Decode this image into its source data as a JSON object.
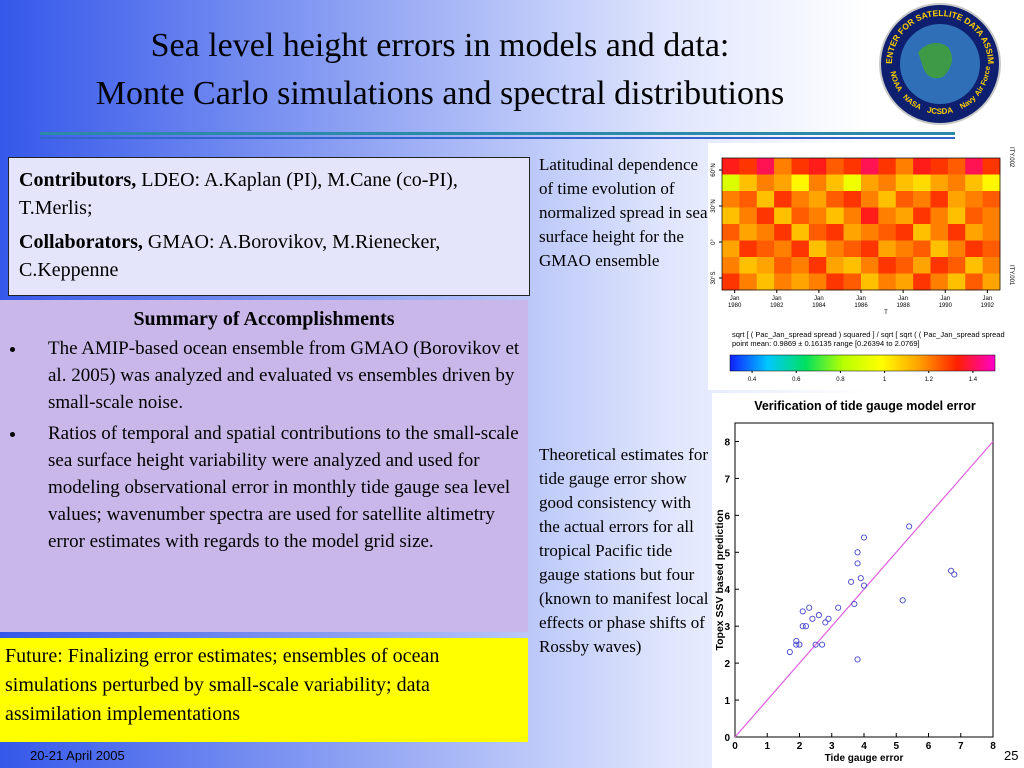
{
  "title": [
    "Sea level height errors in models and data:",
    "Monte Carlo simulations and spectral distributions"
  ],
  "logo": {
    "ring": "JOINT CENTER FOR SATELLITE DATA ASSIMILATION",
    "bottom": [
      "NOAA",
      "NASA",
      "JCSDA",
      "Navy",
      "Air Force"
    ]
  },
  "contributors": {
    "label": "Contributors,",
    "text": "LDEO: A.Kaplan (PI), M.Cane (co-PI), T.Merlis;"
  },
  "collaborators": {
    "label": "Collaborators,",
    "text": "GMAO: A.Borovikov, M.Rienecker, C.Keppenne"
  },
  "summary": {
    "title": "Summary of Accomplishments",
    "items": [
      "The AMIP-based ocean ensemble from GMAO (Borovikov et al. 2005) was analyzed and evaluated vs ensembles driven by small-scale noise.",
      "Ratios of temporal and spatial contributions to the small-scale sea surface height variability were analyzed and used  for modeling observational error in monthly tide gauge sea level values; wavenumber spectra are used for satellite altimetry error estimates with regards to the model grid size."
    ]
  },
  "future": "Future: Finalizing error estimates; ensembles of ocean simulations perturbed by small-scale variability; data assimilation implementations",
  "caption1": "Latitudinal dependence of time evolution of normalized spread in sea surface height for the GMAO ensemble",
  "caption2": "Theoretical estimates for tide gauge error show good consistency with the actual errors for all tropical Pacific tide gauge stations but four (known to manifest local effects or phase shifts of Rossby waves)",
  "footer": {
    "date": "20-21 April 2005",
    "page": "25"
  },
  "heatmap": {
    "type": "heatmap",
    "side_labels": [
      "ITY.002",
      "ITY.001"
    ],
    "xlim": [
      1979.4,
      1992.6
    ],
    "xticks": [
      1980,
      1982,
      1984,
      1986,
      1988,
      1990,
      1992
    ],
    "xtick_month": "Jan",
    "x_marker": "T",
    "ylim": [
      -40,
      70
    ],
    "yticks": [
      {
        "value": 60,
        "label": "60°N"
      },
      {
        "value": 30,
        "label": "30°N"
      },
      {
        "value": 0,
        "label": "0°"
      },
      {
        "value": -30,
        "label": "30°S"
      }
    ],
    "formula": "sqrt [ ( Pac_Jan_spread spread ) squared ]   /   sqrt [   sqrt ( ( Pac_Jan_spread spread",
    "stats": "point mean: 0.9869 ± 0.16135 range [0.26394 to 2.0769]",
    "values": [
      [
        1.35,
        1.3,
        1.4,
        1.2,
        1.3,
        1.35,
        1.25,
        1.3,
        1.4,
        1.3,
        1.2,
        1.35,
        1.3,
        1.25,
        1.4,
        1.3
      ],
      [
        0.9,
        1.1,
        1.2,
        1.15,
        1.0,
        1.2,
        1.1,
        0.95,
        1.15,
        1.2,
        1.1,
        1.05,
        1.15,
        1.2,
        1.1,
        1.0
      ],
      [
        1.2,
        1.25,
        1.1,
        1.3,
        1.2,
        1.15,
        1.25,
        1.3,
        1.2,
        1.1,
        1.25,
        1.2,
        1.3,
        1.15,
        1.2,
        1.25
      ],
      [
        1.1,
        1.2,
        1.3,
        1.1,
        1.25,
        1.2,
        1.1,
        1.2,
        1.35,
        1.2,
        1.15,
        1.3,
        1.2,
        1.1,
        1.25,
        1.2
      ],
      [
        1.25,
        1.15,
        1.2,
        1.3,
        1.1,
        1.25,
        1.3,
        1.15,
        1.2,
        1.25,
        1.3,
        1.1,
        1.2,
        1.3,
        1.15,
        1.2
      ],
      [
        1.15,
        1.3,
        1.25,
        1.2,
        1.3,
        1.1,
        1.2,
        1.25,
        1.3,
        1.15,
        1.2,
        1.25,
        1.1,
        1.2,
        1.3,
        1.25
      ],
      [
        1.2,
        1.1,
        1.15,
        1.25,
        1.2,
        1.3,
        1.15,
        1.1,
        1.2,
        1.3,
        1.25,
        1.15,
        1.3,
        1.25,
        1.1,
        1.2
      ],
      [
        1.3,
        1.2,
        1.1,
        1.2,
        1.15,
        1.2,
        1.3,
        1.25,
        1.1,
        1.2,
        1.15,
        1.3,
        1.2,
        1.1,
        1.25,
        1.15
      ]
    ],
    "colorbar": {
      "lim": [
        0.3,
        1.5
      ],
      "ticks": [
        0.4,
        0.6,
        0.8,
        1,
        1.2,
        1.4
      ],
      "colors": [
        "#1020ff",
        "#00c8ff",
        "#00e060",
        "#b8ff00",
        "#ffff00",
        "#ffa000",
        "#ff2000",
        "#ff00c8"
      ]
    }
  },
  "scatter": {
    "type": "scatter",
    "title": "Verification of tide gauge model error",
    "xlabel": "Tide gauge error",
    "ylabel": "Topex SSV based prediction",
    "color": "#4444cc",
    "line_color": "#e060e0",
    "xlim": [
      0,
      8
    ],
    "ylim": [
      0,
      8.5
    ],
    "xticks": [
      0,
      1,
      2,
      3,
      4,
      5,
      6,
      7,
      8
    ],
    "yticks": [
      0,
      1,
      2,
      3,
      4,
      5,
      6,
      7,
      8
    ],
    "x": [
      1.7,
      1.9,
      1.9,
      2.0,
      2.1,
      2.1,
      2.2,
      2.3,
      2.4,
      2.5,
      2.6,
      2.7,
      2.8,
      2.9,
      3.2,
      3.6,
      3.7,
      3.8,
      3.8,
      3.9,
      4.0,
      4.0,
      3.8,
      5.2,
      5.4,
      6.7,
      6.8
    ],
    "y": [
      2.3,
      2.5,
      2.6,
      2.5,
      3.0,
      3.4,
      3.0,
      3.5,
      3.2,
      2.5,
      3.3,
      2.5,
      3.1,
      3.2,
      3.5,
      4.2,
      3.6,
      5.0,
      4.7,
      4.3,
      5.4,
      4.1,
      2.1,
      3.7,
      5.7,
      4.5,
      4.4
    ]
  }
}
